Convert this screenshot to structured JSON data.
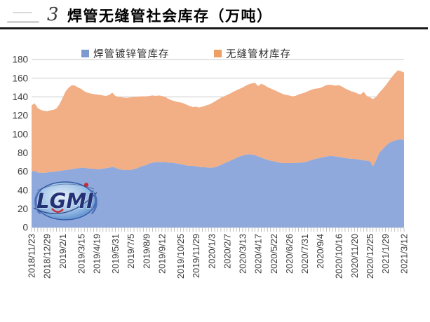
{
  "header": {
    "note": "3",
    "title": "焊管无缝管社会库存（万吨）"
  },
  "legend": {
    "items": [
      {
        "label": "焊管镀锌管库存",
        "color": "#7E99CF"
      },
      {
        "label": "无缝管材库存",
        "color": "#ED9F66"
      }
    ]
  },
  "watermark": {
    "text": "LGMI"
  },
  "chart_data": {
    "type": "area",
    "stacked": true,
    "title": "焊管无缝管社会库存（万吨）",
    "xlabel": "",
    "ylabel": "",
    "ylim": [
      0,
      180
    ],
    "y_ticks": [
      0,
      20,
      40,
      60,
      80,
      100,
      120,
      140,
      160,
      180
    ],
    "grid": true,
    "legend_position": "top",
    "x_tick_labels": [
      "2018/11/23",
      "2018/12/29",
      "2019/2/1",
      "2019/3/15",
      "2019/4/19",
      "2019/5/31",
      "2019/7/5",
      "2019/8/9",
      "2019/9/12",
      "2019/10/25",
      "2019/11/29",
      "2020/1/3",
      "2020/2/7",
      "2020/3/13",
      "2020/4/17",
      "2020/5/22",
      "2020/6/26",
      "2020/7/31",
      "2020/9/4",
      "2020/10/16",
      "2020/11/20",
      "2020/12/25",
      "2021/1/29",
      "2021/3/12"
    ],
    "x_tick_indices": [
      0,
      5,
      10,
      16,
      21,
      27,
      32,
      37,
      42,
      48,
      53,
      58,
      63,
      68,
      73,
      78,
      83,
      88,
      93,
      99,
      104,
      109,
      114,
      120
    ],
    "series": [
      {
        "name": "焊管镀锌管库存",
        "color": "#8FA9DC",
        "values": [
          60,
          60.5,
          59,
          58.5,
          58.5,
          59,
          59.5,
          59.5,
          60,
          60.5,
          61,
          61.5,
          62,
          62.5,
          63,
          63.5,
          64,
          64,
          63.5,
          63,
          63,
          62.5,
          62.5,
          63,
          63.5,
          64,
          65,
          64,
          62.5,
          62,
          61.5,
          61.5,
          61.5,
          62.5,
          63.5,
          65,
          66,
          67,
          68.5,
          69.5,
          70,
          70,
          70,
          70,
          69.5,
          69.5,
          69,
          68.5,
          68,
          67,
          66.5,
          66,
          66,
          65.5,
          65,
          64.5,
          64.5,
          64,
          64,
          64.5,
          65.5,
          67,
          68.5,
          70,
          71.5,
          73,
          74.5,
          76,
          77,
          78,
          78.5,
          78,
          77.5,
          76,
          75,
          73.5,
          72.5,
          71.5,
          71,
          70,
          69.5,
          69,
          69,
          69,
          69,
          69,
          69.5,
          69.5,
          70,
          71,
          72,
          73,
          74,
          74.5,
          75.5,
          76,
          76.5,
          76.5,
          76,
          75.5,
          75,
          74.5,
          74,
          73.5,
          73.5,
          73,
          72.5,
          72,
          71.5,
          71,
          65.5,
          72,
          80,
          83.5,
          87,
          90,
          92,
          93,
          94,
          94.5,
          93.5
        ]
      },
      {
        "name": "无缝管材库存",
        "color": "#F2AE85",
        "values": [
          71,
          72.5,
          69,
          67.5,
          66.5,
          65.5,
          66,
          66.5,
          67.5,
          71.5,
          78,
          84.5,
          88,
          90,
          89,
          86.5,
          84.5,
          82,
          81,
          80.5,
          80,
          80,
          79.5,
          78.5,
          77.5,
          78,
          79.5,
          77,
          77.5,
          77.5,
          77.5,
          77.5,
          78,
          77.5,
          76.5,
          75.5,
          74.5,
          73.5,
          72.5,
          72,
          71,
          71.5,
          71,
          70,
          68.5,
          67,
          66.5,
          66,
          66,
          66,
          65,
          64,
          63,
          64,
          63.5,
          65,
          66,
          67.5,
          69,
          70.5,
          71.5,
          72,
          72,
          72,
          72,
          72.5,
          72.5,
          72.5,
          73,
          74,
          75,
          76.5,
          77.5,
          75.5,
          79,
          79,
          78,
          77.5,
          76.5,
          76,
          75,
          74,
          73,
          72.5,
          71.5,
          72,
          73,
          74,
          74.5,
          75,
          75.5,
          75.5,
          75,
          75,
          75.5,
          76.5,
          76.5,
          76,
          76,
          77,
          76,
          74.5,
          73.5,
          72.5,
          71.5,
          70.5,
          70,
          73.5,
          69.5,
          68.5,
          72,
          68,
          64.5,
          64.5,
          65,
          66.5,
          69,
          72,
          74.5,
          73,
          72.5
        ]
      }
    ]
  }
}
